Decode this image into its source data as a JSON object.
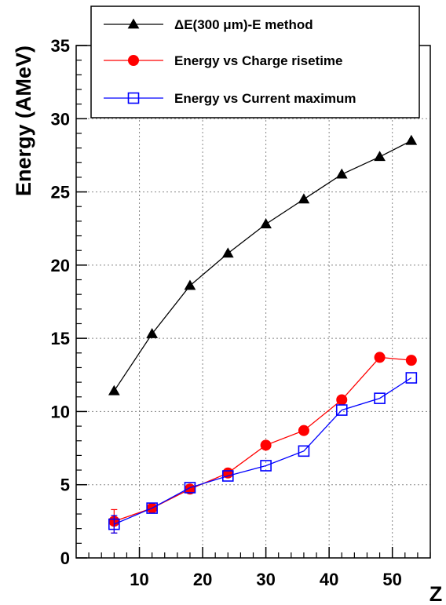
{
  "chart_data": {
    "type": "line",
    "title": "",
    "xlabel": "Z",
    "ylabel": "Energy (AMeV)",
    "xlim": [
      0,
      56
    ],
    "ylim": [
      0,
      35
    ],
    "xticks": [
      10,
      20,
      30,
      40,
      50
    ],
    "yticks": [
      0,
      5,
      10,
      15,
      20,
      25,
      30,
      35
    ],
    "grid": true,
    "legend_position": "top",
    "series": [
      {
        "name": "ΔE(300 μm)-E method",
        "color": "#000000",
        "marker": "filled-triangle",
        "x": [
          6,
          12,
          18,
          24,
          30,
          36,
          42,
          48,
          53
        ],
        "y": [
          11.4,
          15.3,
          18.6,
          20.8,
          22.8,
          24.5,
          26.2,
          27.4,
          28.5
        ]
      },
      {
        "name": "Energy vs Charge risetime",
        "color": "#ff0000",
        "marker": "filled-circle",
        "x": [
          6,
          12,
          18,
          24,
          30,
          36,
          42,
          48,
          53
        ],
        "y": [
          2.5,
          3.4,
          4.7,
          5.8,
          7.7,
          8.7,
          10.8,
          13.7,
          13.5
        ],
        "y_error": [
          0.8,
          0,
          0,
          0,
          0,
          0,
          0,
          0,
          0
        ]
      },
      {
        "name": "Energy vs Current maximum",
        "color": "#0000ff",
        "marker": "open-square",
        "x": [
          6,
          12,
          18,
          24,
          30,
          36,
          42,
          48,
          53
        ],
        "y": [
          2.3,
          3.4,
          4.8,
          5.6,
          6.3,
          7.3,
          10.1,
          10.9,
          12.3
        ],
        "y_error": [
          0.6,
          0,
          0,
          0,
          0,
          0,
          0,
          0,
          0
        ]
      }
    ]
  }
}
